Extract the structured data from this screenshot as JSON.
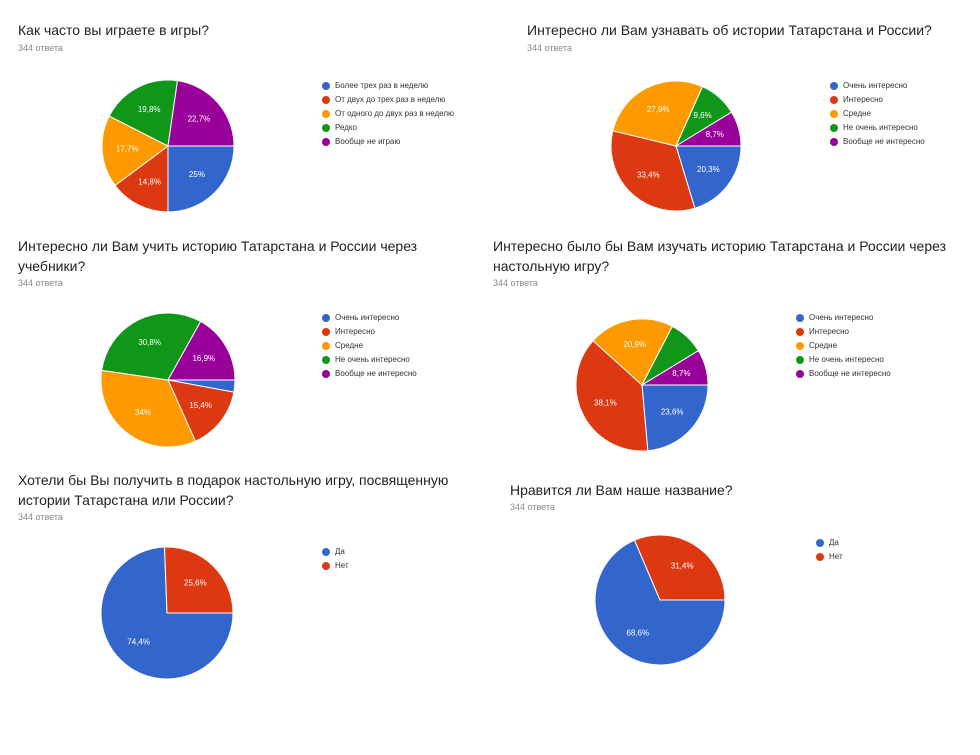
{
  "chart_data": [
    {
      "type": "pie",
      "title": "Как часто вы играете в игры?",
      "subtitle": "344 ответа",
      "categories": [
        "Более трех раз в неделю",
        "От двух до трех раз в неделю",
        "От одного до двух раз в неделю",
        "Редко",
        "Вообще не играю"
      ],
      "values": [
        25,
        14.8,
        17.7,
        19.8,
        22.7
      ],
      "value_labels": [
        "25%",
        "14,8%",
        "17,7%",
        "19,8%",
        "22,7%"
      ],
      "colors": [
        "#3366cc",
        "#dc3912",
        "#ff9900",
        "#109618",
        "#990099"
      ]
    },
    {
      "type": "pie",
      "title": "Интересно ли Вам узнавать об истории Татарстана и России?",
      "subtitle": "344 ответа",
      "categories": [
        "Очень интересно",
        "Интересно",
        "Средне",
        "Не очень интересно",
        "Вообще не интересно"
      ],
      "values": [
        20.3,
        33.4,
        27.9,
        9.6,
        8.7
      ],
      "value_labels": [
        "20,3%",
        "33,4%",
        "27,9%",
        "9,6%",
        "8,7%"
      ],
      "colors": [
        "#3366cc",
        "#dc3912",
        "#ff9900",
        "#109618",
        "#990099"
      ]
    },
    {
      "type": "pie",
      "title": "Интересно ли Вам учить историю Татарстана и России через учебники?",
      "subtitle": "344 ответа",
      "categories": [
        "Очень интересно",
        "Интересно",
        "Средне",
        "Не очень интересно",
        "Вообще не интересно"
      ],
      "values": [
        2.9,
        15.4,
        34,
        30.8,
        16.9
      ],
      "value_labels": [
        null,
        "15,4%",
        "34%",
        "30,8%",
        "16,9%"
      ],
      "colors": [
        "#3366cc",
        "#dc3912",
        "#ff9900",
        "#109618",
        "#990099"
      ]
    },
    {
      "type": "pie",
      "title": "Интересно было бы Вам изучать историю Татарстана и России через настольную игру?",
      "subtitle": "344 ответа",
      "categories": [
        "Очень интересно",
        "Интересно",
        "Средне",
        "Не очень интересно",
        "Вообще не интересно"
      ],
      "values": [
        23.6,
        38.1,
        20.9,
        8.7,
        8.7
      ],
      "value_labels": [
        "23,6%",
        "38,1%",
        "20,9%",
        null,
        "8,7%"
      ],
      "colors": [
        "#3366cc",
        "#dc3912",
        "#ff9900",
        "#109618",
        "#990099"
      ]
    },
    {
      "type": "pie",
      "title": "Хотели бы Вы получить в подарок настольную игру, посвященную истории Татарстана или России?",
      "subtitle": "344 ответа",
      "categories": [
        "Да",
        "Нет"
      ],
      "values": [
        74.4,
        25.6
      ],
      "value_labels": [
        "74,4%",
        "25,6%"
      ],
      "colors": [
        "#3366cc",
        "#dc3912"
      ]
    },
    {
      "type": "pie",
      "title": "Нравится ли Вам наше название?",
      "subtitle": "344 ответа",
      "categories": [
        "Да",
        "Нет"
      ],
      "values": [
        68.6,
        31.4
      ],
      "value_labels": [
        "68,6%",
        "31,4%"
      ],
      "colors": [
        "#3366cc",
        "#dc3912"
      ]
    }
  ]
}
